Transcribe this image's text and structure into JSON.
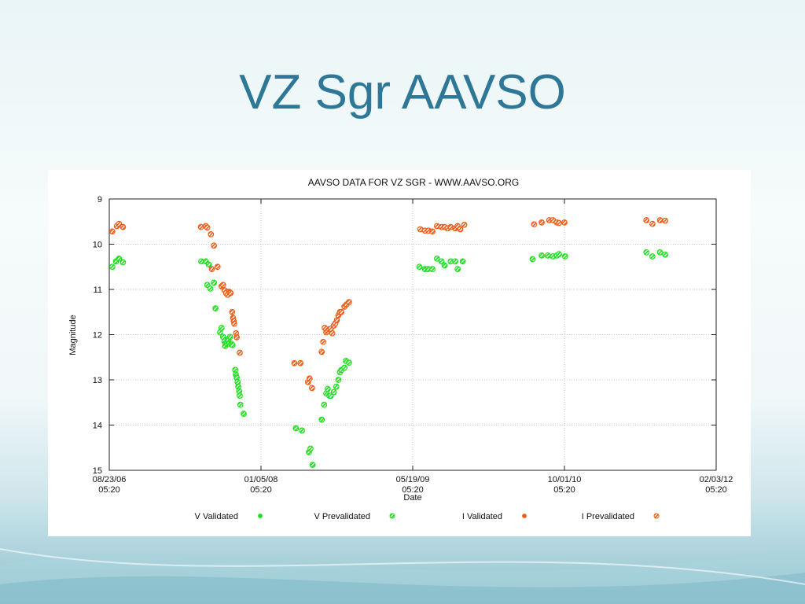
{
  "slide": {
    "title": "VZ Sgr AAVSO"
  },
  "chart_data": {
    "type": "scatter",
    "title": "AAVSO DATA FOR VZ SGR - WWW.AAVSO.ORG",
    "xlabel": "Date",
    "ylabel": "Magnitude",
    "ylim": [
      15,
      9
    ],
    "y_inverted": true,
    "x_ticks": [
      {
        "date": "08/23/06",
        "time": "05:20",
        "x": 0
      },
      {
        "date": "01/05/08",
        "time": "05:20",
        "x": 500
      },
      {
        "date": "05/19/09",
        "time": "05:20",
        "x": 1000
      },
      {
        "date": "10/01/10",
        "time": "05:20",
        "x": 1500
      },
      {
        "date": "02/03/12",
        "time": "05:20",
        "x": 2000
      }
    ],
    "x_unit": "days since 08/23/06 05:20",
    "y_ticks": [
      9,
      10,
      11,
      12,
      13,
      14,
      15
    ],
    "grid": true,
    "legend_position": "bottom",
    "colors": {
      "V": "#19e019",
      "I": "#f05a12"
    },
    "series": [
      {
        "name": "I Validated / Prevalidated",
        "color": "#f05a12",
        "points": [
          [
            10,
            9.72
          ],
          [
            25,
            9.6
          ],
          [
            32,
            9.55
          ],
          [
            45,
            9.62
          ],
          [
            302,
            9.62
          ],
          [
            318,
            9.6
          ],
          [
            323,
            9.63
          ],
          [
            335,
            9.78
          ],
          [
            345,
            10.03
          ],
          [
            357,
            10.5
          ],
          [
            338,
            10.55
          ],
          [
            370,
            10.93
          ],
          [
            375,
            10.9
          ],
          [
            380,
            11.02
          ],
          [
            385,
            11.08
          ],
          [
            390,
            11.12
          ],
          [
            395,
            11.05
          ],
          [
            400,
            11.08
          ],
          [
            405,
            11.5
          ],
          [
            408,
            11.63
          ],
          [
            410,
            11.7
          ],
          [
            412,
            11.76
          ],
          [
            418,
            11.97
          ],
          [
            420,
            12.06
          ],
          [
            430,
            12.4
          ],
          [
            610,
            12.63
          ],
          [
            630,
            12.63
          ],
          [
            655,
            13.05
          ],
          [
            660,
            12.97
          ],
          [
            668,
            13.18
          ],
          [
            700,
            12.38
          ],
          [
            705,
            12.16
          ],
          [
            710,
            11.85
          ],
          [
            715,
            11.95
          ],
          [
            720,
            11.92
          ],
          [
            725,
            11.88
          ],
          [
            730,
            11.87
          ],
          [
            735,
            11.97
          ],
          [
            740,
            11.8
          ],
          [
            745,
            11.75
          ],
          [
            750,
            11.68
          ],
          [
            755,
            11.57
          ],
          [
            760,
            11.5
          ],
          [
            765,
            11.5
          ],
          [
            775,
            11.38
          ],
          [
            782,
            11.33
          ],
          [
            790,
            11.28
          ],
          [
            1025,
            9.67
          ],
          [
            1040,
            9.7
          ],
          [
            1052,
            9.7
          ],
          [
            1065,
            9.72
          ],
          [
            1080,
            9.6
          ],
          [
            1095,
            9.62
          ],
          [
            1105,
            9.62
          ],
          [
            1115,
            9.65
          ],
          [
            1125,
            9.62
          ],
          [
            1140,
            9.65
          ],
          [
            1148,
            9.6
          ],
          [
            1157,
            9.67
          ],
          [
            1170,
            9.57
          ],
          [
            1400,
            9.56
          ],
          [
            1425,
            9.52
          ],
          [
            1450,
            9.47
          ],
          [
            1462,
            9.47
          ],
          [
            1475,
            9.52
          ],
          [
            1482,
            9.53
          ],
          [
            1500,
            9.52
          ],
          [
            1770,
            9.47
          ],
          [
            1790,
            9.55
          ],
          [
            1815,
            9.47
          ],
          [
            1832,
            9.48
          ]
        ]
      },
      {
        "name": "V Validated / Prevalidated",
        "color": "#19e019",
        "points": [
          [
            10,
            10.5
          ],
          [
            22,
            10.38
          ],
          [
            32,
            10.32
          ],
          [
            45,
            10.4
          ],
          [
            303,
            10.38
          ],
          [
            318,
            10.38
          ],
          [
            328,
            10.45
          ],
          [
            323,
            10.9
          ],
          [
            333,
            10.98
          ],
          [
            345,
            10.85
          ],
          [
            350,
            11.42
          ],
          [
            365,
            11.95
          ],
          [
            370,
            11.85
          ],
          [
            375,
            12.05
          ],
          [
            380,
            12.15
          ],
          [
            382,
            12.25
          ],
          [
            388,
            12.2
          ],
          [
            392,
            12.1
          ],
          [
            396,
            12.2
          ],
          [
            398,
            12.05
          ],
          [
            402,
            12.2
          ],
          [
            406,
            12.23
          ],
          [
            415,
            12.78
          ],
          [
            417,
            12.88
          ],
          [
            420,
            12.95
          ],
          [
            423,
            13.05
          ],
          [
            425,
            13.15
          ],
          [
            428,
            13.25
          ],
          [
            430,
            13.35
          ],
          [
            432,
            13.55
          ],
          [
            443,
            13.75
          ],
          [
            615,
            14.07
          ],
          [
            635,
            14.12
          ],
          [
            658,
            14.6
          ],
          [
            663,
            14.52
          ],
          [
            670,
            14.88
          ],
          [
            700,
            13.88
          ],
          [
            708,
            13.55
          ],
          [
            715,
            13.3
          ],
          [
            720,
            13.2
          ],
          [
            725,
            13.35
          ],
          [
            730,
            13.35
          ],
          [
            740,
            13.27
          ],
          [
            748,
            13.15
          ],
          [
            755,
            13.0
          ],
          [
            760,
            12.83
          ],
          [
            765,
            12.78
          ],
          [
            775,
            12.73
          ],
          [
            780,
            12.58
          ],
          [
            790,
            12.62
          ],
          [
            1022,
            10.5
          ],
          [
            1040,
            10.55
          ],
          [
            1050,
            10.55
          ],
          [
            1065,
            10.55
          ],
          [
            1080,
            10.32
          ],
          [
            1095,
            10.38
          ],
          [
            1105,
            10.47
          ],
          [
            1125,
            10.38
          ],
          [
            1140,
            10.38
          ],
          [
            1148,
            10.55
          ],
          [
            1165,
            10.38
          ],
          [
            1395,
            10.33
          ],
          [
            1425,
            10.25
          ],
          [
            1445,
            10.25
          ],
          [
            1462,
            10.27
          ],
          [
            1475,
            10.25
          ],
          [
            1482,
            10.22
          ],
          [
            1502,
            10.27
          ],
          [
            1770,
            10.18
          ],
          [
            1790,
            10.27
          ],
          [
            1815,
            10.18
          ],
          [
            1832,
            10.23
          ]
        ]
      }
    ],
    "legend": [
      {
        "label": "V Validated",
        "marker": "filled",
        "color": "#19e019"
      },
      {
        "label": "V Prevalidated",
        "marker": "hatched",
        "color": "#19e019"
      },
      {
        "label": "I Validated",
        "marker": "filled",
        "color": "#f05a12"
      },
      {
        "label": "I Prevalidated",
        "marker": "hatched",
        "color": "#f05a12"
      }
    ]
  }
}
